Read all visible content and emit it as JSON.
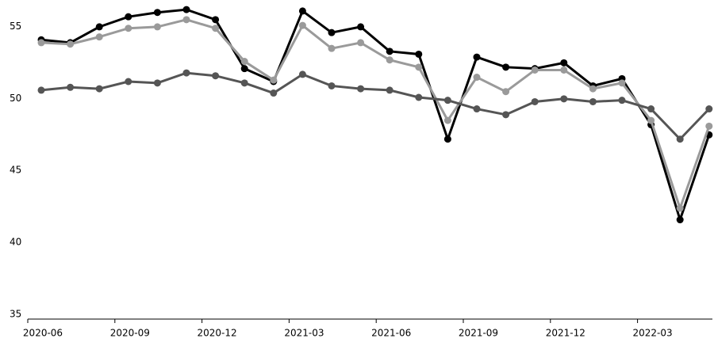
{
  "chart_data": {
    "type": "line",
    "categories": [
      "2020-06",
      null,
      null,
      "2020-09",
      null,
      null,
      "2020-12",
      null,
      null,
      "2021-03",
      null,
      null,
      "2021-06",
      null,
      null,
      "2021-09",
      null,
      null,
      "2021-12",
      null,
      null,
      "2022-03",
      null,
      null
    ],
    "series": [
      {
        "color": "#000000",
        "values": [
          54.4,
          54.2,
          55.3,
          56.0,
          56.3,
          56.5,
          55.8,
          52.4,
          51.5,
          56.4,
          54.9,
          55.3,
          53.6,
          53.4,
          47.5,
          53.2,
          52.5,
          52.4,
          52.8,
          51.2,
          51.7,
          48.5,
          41.9,
          47.8
        ]
      },
      {
        "color": "#9a9a9a",
        "values": [
          54.2,
          54.1,
          54.6,
          55.2,
          55.3,
          55.8,
          55.2,
          52.9,
          51.6,
          55.4,
          53.8,
          54.2,
          53.0,
          52.5,
          48.8,
          51.8,
          50.8,
          52.3,
          52.3,
          51.0,
          51.4,
          48.8,
          42.7,
          48.4
        ]
      },
      {
        "color": "#555555",
        "values": [
          50.9,
          51.1,
          51.0,
          51.5,
          51.4,
          52.1,
          51.9,
          51.4,
          50.7,
          52.0,
          51.2,
          51.0,
          50.9,
          50.4,
          50.2,
          49.6,
          49.2,
          50.1,
          50.3,
          50.1,
          50.2,
          49.6,
          47.5,
          49.6
        ]
      }
    ],
    "ylim": [
      35,
      57
    ],
    "yticks": [
      35,
      40,
      45,
      50,
      55
    ],
    "grid": false
  }
}
